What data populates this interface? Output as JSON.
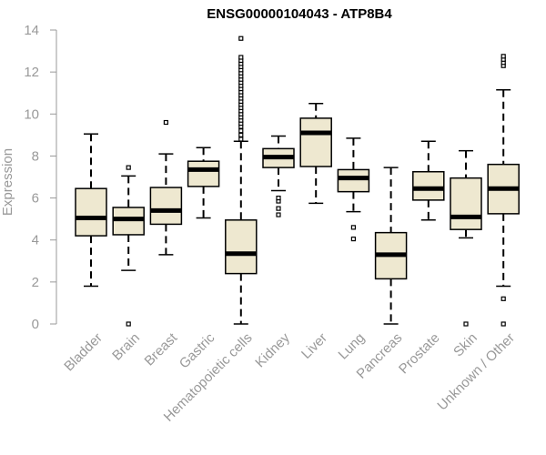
{
  "chart_data": {
    "type": "box",
    "title": "ENSG00000104043 - ATP8B4",
    "xlabel": "",
    "ylabel": "Expression",
    "ylim": [
      0,
      14
    ],
    "yticks": [
      0,
      2,
      4,
      6,
      8,
      10,
      12,
      14
    ],
    "box_fill": "#EEE8D0",
    "box_stroke": "#000000",
    "categories": [
      "Bladder",
      "Brain",
      "Breast",
      "Gastric",
      "Hematopoietic cells",
      "Kidney",
      "Liver",
      "Lung",
      "Pancreas",
      "Prostate",
      "Skin",
      "Unknown / Other"
    ],
    "boxes": [
      {
        "category": "Bladder",
        "whisker_low": 1.8,
        "q1": 4.2,
        "median": 5.05,
        "q3": 6.45,
        "whisker_high": 9.05,
        "outliers": []
      },
      {
        "category": "Brain",
        "whisker_low": 2.55,
        "q1": 4.25,
        "median": 5.0,
        "q3": 5.55,
        "whisker_high": 7.05,
        "outliers": [
          0.0,
          7.45
        ]
      },
      {
        "category": "Breast",
        "whisker_low": 3.3,
        "q1": 4.75,
        "median": 5.4,
        "q3": 6.5,
        "whisker_high": 8.1,
        "outliers": [
          9.6
        ]
      },
      {
        "category": "Gastric",
        "whisker_low": 5.05,
        "q1": 6.55,
        "median": 7.35,
        "q3": 7.75,
        "whisker_high": 8.4,
        "outliers": []
      },
      {
        "category": "Hematopoietic cells",
        "whisker_low": 0.0,
        "q1": 2.4,
        "median": 3.35,
        "q3": 4.95,
        "whisker_high": 8.7,
        "outliers": [
          8.8,
          9.0,
          9.2,
          9.4,
          9.55,
          9.7,
          9.85,
          10.0,
          10.15,
          10.3,
          10.45,
          10.6,
          10.75,
          10.9,
          11.05,
          11.2,
          11.35,
          11.5,
          11.65,
          11.8,
          11.95,
          12.1,
          12.25,
          12.4,
          12.55,
          12.7,
          13.6
        ]
      },
      {
        "category": "Kidney",
        "whisker_low": 6.35,
        "q1": 7.45,
        "median": 7.95,
        "q3": 8.35,
        "whisker_high": 8.95,
        "outliers": [
          5.2,
          5.5,
          5.85,
          6.0
        ]
      },
      {
        "category": "Liver",
        "whisker_low": 5.75,
        "q1": 7.5,
        "median": 9.1,
        "q3": 9.8,
        "whisker_high": 10.5,
        "outliers": []
      },
      {
        "category": "Lung",
        "whisker_low": 5.35,
        "q1": 6.3,
        "median": 6.95,
        "q3": 7.35,
        "whisker_high": 8.85,
        "outliers": [
          4.05,
          4.6
        ]
      },
      {
        "category": "Pancreas",
        "whisker_low": 0.0,
        "q1": 2.15,
        "median": 3.3,
        "q3": 4.35,
        "whisker_high": 7.45,
        "outliers": []
      },
      {
        "category": "Prostate",
        "whisker_low": 4.95,
        "q1": 5.9,
        "median": 6.45,
        "q3": 7.25,
        "whisker_high": 8.7,
        "outliers": []
      },
      {
        "category": "Skin",
        "whisker_low": 4.1,
        "q1": 4.5,
        "median": 5.1,
        "q3": 6.95,
        "whisker_high": 8.25,
        "outliers": [
          0.0
        ]
      },
      {
        "category": "Unknown / Other",
        "whisker_low": 1.8,
        "q1": 5.25,
        "median": 6.45,
        "q3": 7.6,
        "whisker_high": 11.15,
        "outliers": [
          0.0,
          1.2,
          12.3,
          12.45,
          12.6,
          12.75
        ]
      }
    ]
  }
}
